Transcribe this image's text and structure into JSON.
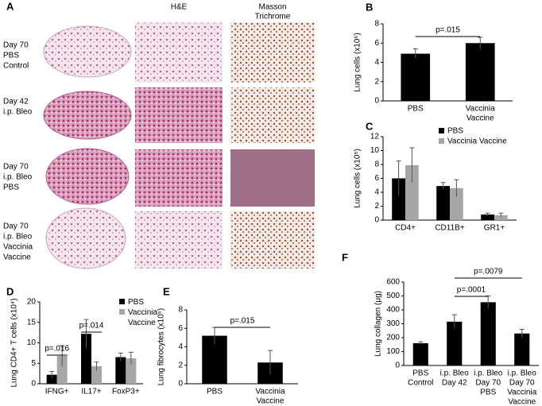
{
  "panel_a": {
    "label": "A",
    "columns": [
      [
        "H&E"
      ],
      [
        "Masson",
        "Trichrome"
      ]
    ],
    "rows": [
      [
        "Day 70",
        "PBS",
        "Control"
      ],
      [
        "Day 42",
        "i.p. Bleo"
      ],
      [
        "Day 70",
        "i.p. Bleo",
        "PBS"
      ],
      [
        "Day 70",
        "i.p. Bleo",
        "Vaccinia",
        "Vaccine"
      ]
    ]
  },
  "chart_data": [
    {
      "type": "bar",
      "label": "B",
      "y_label": "Lung cells (x10⁶)",
      "categories": [
        [
          "PBS"
        ],
        [
          "Vaccinia",
          "Vaccine"
        ]
      ],
      "values": [
        4.9,
        6.0
      ],
      "errors": [
        0.5,
        0.6
      ],
      "color": "#000000",
      "ylim": [
        0,
        8
      ],
      "yticks": [
        0,
        2,
        4,
        6,
        8
      ],
      "annotations": [
        "p=.015"
      ]
    },
    {
      "type": "bar",
      "label": "C",
      "y_label": "Lung cells (x10⁵)",
      "categories": [
        [
          "CD4+"
        ],
        [
          "CD11B+"
        ],
        [
          "GR1+"
        ]
      ],
      "series": [
        {
          "name": "PBS",
          "color": "#000000",
          "values": [
            6.0,
            4.9,
            0.8
          ],
          "errors": [
            2.5,
            0.5,
            0.2
          ]
        },
        {
          "name": "Vaccinia Vaccine",
          "color": "#a6a6a6",
          "values": [
            7.9,
            4.6,
            0.7
          ],
          "errors": [
            2.5,
            1.2,
            0.3
          ]
        }
      ],
      "ylim": [
        0,
        12
      ],
      "yticks": [
        0,
        2,
        4,
        6,
        8,
        10,
        12
      ]
    },
    {
      "type": "bar",
      "label": "D",
      "y_label": "Lung CD4+ T cells (x10⁴)",
      "categories": [
        [
          "IFNG+"
        ],
        [
          "IL17+"
        ],
        [
          "FoxP3+"
        ]
      ],
      "series": [
        {
          "name": "PBS",
          "color": "#000000",
          "values": [
            2.2,
            12.2,
            6.5
          ],
          "errors": [
            0.8,
            3.5,
            1.0
          ]
        },
        {
          "name": "Vaccinia Vaccine",
          "color": "#a6a6a6",
          "values": [
            6.8,
            4.3,
            6.2
          ],
          "errors": [
            2.5,
            1.0,
            1.5
          ]
        }
      ],
      "ylim": [
        0,
        20
      ],
      "yticks": [
        0,
        5,
        10,
        15,
        20
      ],
      "annotations": [
        "p=.016",
        "p=.014"
      ]
    },
    {
      "type": "bar",
      "label": "E",
      "y_label": "Lung fibrocytes (x10⁵)",
      "categories": [
        [
          "PBS"
        ],
        [
          "Vaccinia",
          "Vaccine"
        ]
      ],
      "values": [
        5.2,
        2.3
      ],
      "errors": [
        0.9,
        1.3
      ],
      "color": "#000000",
      "ylim": [
        0,
        8
      ],
      "yticks": [
        0,
        2,
        4,
        6,
        8
      ],
      "annotations": [
        "p=.015"
      ]
    },
    {
      "type": "bar",
      "label": "F",
      "y_label": "Lung collagen (μg)",
      "categories": [
        [
          "PBS",
          "Control"
        ],
        [
          "i.p. Bleo",
          "Day 42"
        ],
        [
          "i.p. Bleo",
          "Day 70",
          "PBS"
        ],
        [
          "i.p. Bleo",
          "Day 70",
          "Vaccinia",
          "Vaccine"
        ]
      ],
      "values": [
        160,
        315,
        455,
        230
      ],
      "errors": [
        10,
        50,
        45,
        30
      ],
      "color": "#000000",
      "ylim": [
        0,
        600
      ],
      "yticks": [
        0,
        100,
        200,
        300,
        400,
        500,
        600
      ],
      "annotations": [
        "p=.0001",
        "p=.0079"
      ]
    }
  ]
}
